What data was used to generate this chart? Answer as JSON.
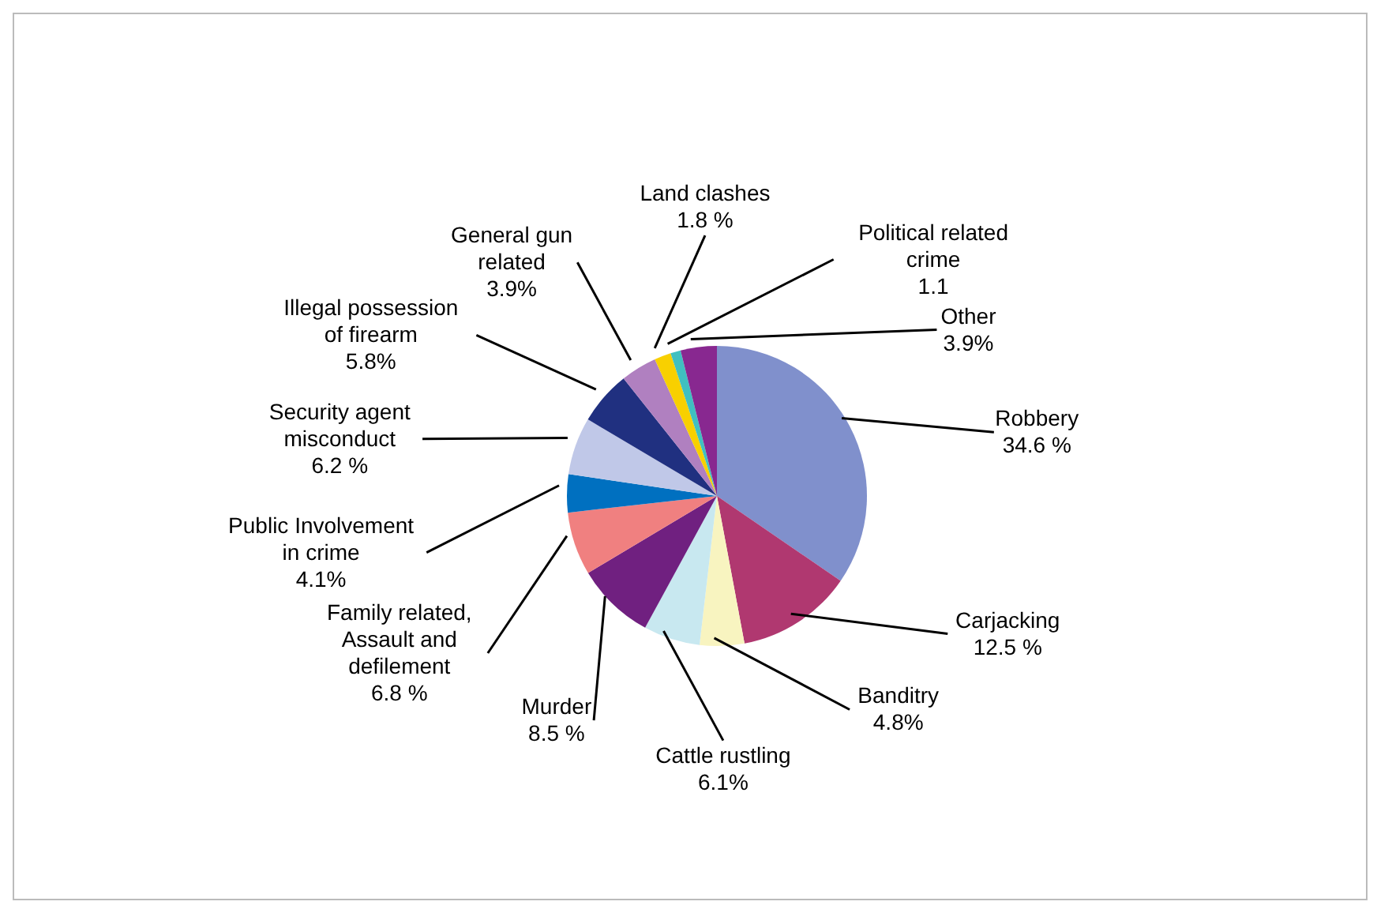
{
  "chart_data": {
    "type": "pie",
    "categories": [
      "Robbery",
      "Carjacking",
      "Banditry",
      "Cattle rustling",
      "Murder",
      "Family related, Assault and defilement",
      "Public Involvement in crime",
      "Security agent misconduct",
      "Illegal possession of firearm",
      "General gun related",
      "Land clashes",
      "Political related crime",
      "Other"
    ],
    "values": [
      34.6,
      12.5,
      4.8,
      6.1,
      8.5,
      6.8,
      4.1,
      6.2,
      5.8,
      3.9,
      1.8,
      1.1,
      3.9
    ],
    "value_labels": [
      "34.6 %",
      "12.5 %",
      "4.8%",
      "6.1%",
      "8.5 %",
      "6.8 %",
      "4.1%",
      "6.2 %",
      "5.8%",
      "3.9%",
      "1.8 %",
      "1.1",
      "3.9%"
    ],
    "colors": [
      "#8090cc",
      "#b03870",
      "#f8f4c0",
      "#c8e8f0",
      "#702080",
      "#f08080",
      "#0070c0",
      "#c0c8e8",
      "#203080",
      "#b080c0",
      "#f8d000",
      "#40c0c0",
      "#882890"
    ],
    "legend": false
  }
}
